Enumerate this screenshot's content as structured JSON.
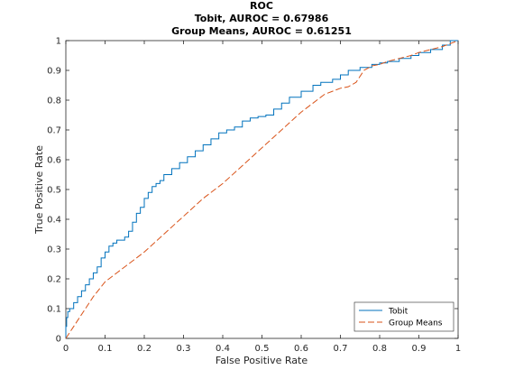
{
  "chart_data": {
    "type": "line",
    "title": [
      "ROC",
      "Tobit, AUROC = 0.67986",
      "Group Means, AUROC = 0.61251"
    ],
    "xlabel": "False Positive Rate",
    "ylabel": "True Positive Rate",
    "xlim": [
      0,
      1
    ],
    "ylim": [
      0,
      1
    ],
    "xticks": [
      "0",
      "0.1",
      "0.2",
      "0.3",
      "0.4",
      "0.5",
      "0.6",
      "0.7",
      "0.8",
      "0.9",
      "1"
    ],
    "yticks": [
      "0",
      "0.1",
      "0.2",
      "0.3",
      "0.4",
      "0.5",
      "0.6",
      "0.7",
      "0.8",
      "0.9",
      "1"
    ],
    "grid": false,
    "legend_position": "bottom-right",
    "series": [
      {
        "name": "Tobit",
        "color": "#0072BD",
        "style": "solid",
        "x": [
          0,
          0.002,
          0.005,
          0.01,
          0.02,
          0.03,
          0.04,
          0.05,
          0.06,
          0.07,
          0.08,
          0.09,
          0.1,
          0.11,
          0.12,
          0.13,
          0.14,
          0.15,
          0.16,
          0.17,
          0.18,
          0.19,
          0.2,
          0.21,
          0.22,
          0.23,
          0.24,
          0.25,
          0.27,
          0.29,
          0.31,
          0.33,
          0.35,
          0.37,
          0.39,
          0.41,
          0.43,
          0.45,
          0.47,
          0.49,
          0.51,
          0.53,
          0.55,
          0.57,
          0.6,
          0.63,
          0.65,
          0.68,
          0.7,
          0.72,
          0.75,
          0.78,
          0.8,
          0.82,
          0.85,
          0.88,
          0.9,
          0.93,
          0.96,
          0.98,
          1.0
        ],
        "y": [
          0,
          0.04,
          0.07,
          0.09,
          0.1,
          0.12,
          0.14,
          0.16,
          0.18,
          0.2,
          0.22,
          0.24,
          0.27,
          0.29,
          0.31,
          0.32,
          0.33,
          0.33,
          0.34,
          0.36,
          0.39,
          0.42,
          0.44,
          0.47,
          0.49,
          0.51,
          0.52,
          0.53,
          0.55,
          0.57,
          0.59,
          0.61,
          0.63,
          0.65,
          0.67,
          0.69,
          0.7,
          0.71,
          0.73,
          0.74,
          0.745,
          0.75,
          0.77,
          0.79,
          0.81,
          0.83,
          0.85,
          0.86,
          0.87,
          0.885,
          0.9,
          0.91,
          0.92,
          0.925,
          0.93,
          0.94,
          0.95,
          0.96,
          0.97,
          0.985,
          1.0
        ]
      },
      {
        "name": "Group Means",
        "color": "#D95319",
        "style": "dashed",
        "x": [
          0,
          0.01,
          0.02,
          0.03,
          0.05,
          0.07,
          0.1,
          0.13,
          0.16,
          0.2,
          0.25,
          0.3,
          0.35,
          0.4,
          0.45,
          0.5,
          0.55,
          0.6,
          0.63,
          0.66,
          0.68,
          0.7,
          0.72,
          0.74,
          0.76,
          0.78,
          0.8,
          0.82,
          0.85,
          0.88,
          0.9,
          0.93,
          0.96,
          1.0
        ],
        "y": [
          0,
          0.02,
          0.04,
          0.06,
          0.1,
          0.14,
          0.19,
          0.22,
          0.25,
          0.29,
          0.35,
          0.41,
          0.47,
          0.52,
          0.58,
          0.64,
          0.7,
          0.76,
          0.79,
          0.82,
          0.83,
          0.84,
          0.845,
          0.86,
          0.9,
          0.915,
          0.92,
          0.93,
          0.94,
          0.95,
          0.96,
          0.97,
          0.98,
          1.0
        ]
      }
    ]
  }
}
